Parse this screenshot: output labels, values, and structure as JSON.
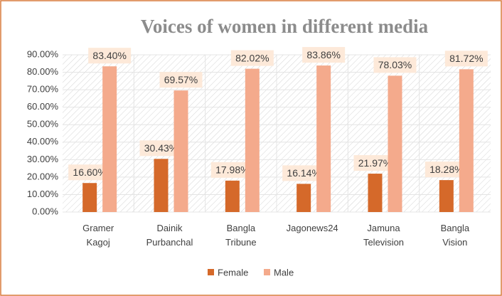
{
  "chart_data": {
    "type": "bar",
    "title": "Voices of women in different media",
    "categories": [
      "Gramer Kagoj",
      "Dainik Purbanchal",
      "Bangla Tribune",
      "Jagonews24",
      "Jamuna Television",
      "Bangla Vision"
    ],
    "series": [
      {
        "name": "Female",
        "color": "#d5692a",
        "values": [
          16.6,
          30.43,
          17.98,
          16.14,
          21.97,
          18.28
        ],
        "value_labels": [
          "16.60%",
          "30.43%",
          "17.98%",
          "16.14%",
          "21.97%",
          "18.28%"
        ]
      },
      {
        "name": "Male",
        "color": "#f4aa8c",
        "values": [
          83.4,
          69.57,
          82.02,
          83.86,
          78.03,
          81.72
        ],
        "value_labels": [
          "83.40%",
          "69.57%",
          "82.02%",
          "83.86%",
          "78.03%",
          "81.72%"
        ]
      }
    ],
    "ylim": [
      0,
      90
    ],
    "yticks": [
      {
        "value": 0,
        "label": "0.00%"
      },
      {
        "value": 10,
        "label": "10.00%"
      },
      {
        "value": 20,
        "label": "20.00%"
      },
      {
        "value": 30,
        "label": "30.00%"
      },
      {
        "value": 40,
        "label": "40.00%"
      },
      {
        "value": 50,
        "label": "50.00%"
      },
      {
        "value": 60,
        "label": "60.00%"
      },
      {
        "value": 70,
        "label": "70.00%"
      },
      {
        "value": 80,
        "label": "80.00%"
      },
      {
        "value": 90,
        "label": "90.00%"
      }
    ],
    "legend": "bottom"
  }
}
